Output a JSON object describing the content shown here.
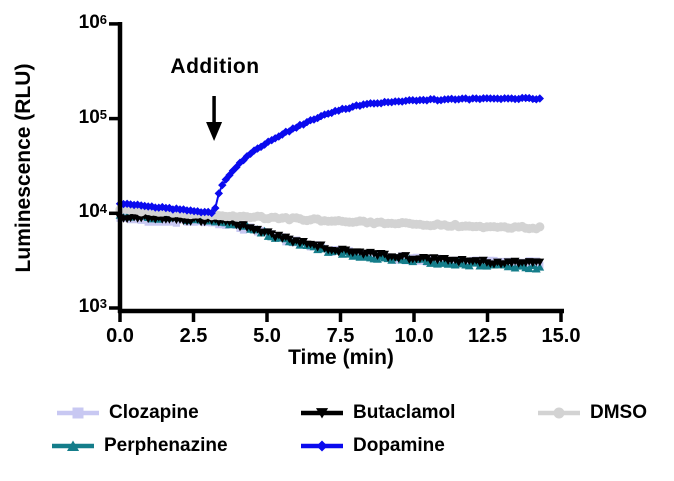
{
  "chart_data": {
    "type": "line",
    "title": "",
    "xlabel": "Time (min)",
    "ylabel": "Luminescence (RLU)",
    "y_scale": "log10",
    "xlim": [
      0.0,
      15.0
    ],
    "ylim": [
      1000,
      1000000
    ],
    "xticks": [
      0.0,
      2.5,
      5.0,
      7.5,
      10.0,
      12.5,
      15.0
    ],
    "xtick_labels": [
      "0.0",
      "2.5",
      "5.0",
      "7.5",
      "10.0",
      "12.5",
      "15.0"
    ],
    "ytick_exponents": [
      3,
      4,
      5,
      6
    ],
    "ytick_base": "10",
    "grid": false,
    "legend_position": "bottom",
    "annotation": {
      "label": "Addition",
      "arrow_time_min": 3.2
    },
    "series": [
      {
        "name": "Clozapine",
        "color": "#c8c8f2",
        "marker": "square",
        "marker_size": 3.6,
        "noise": 0.028,
        "keypoints": [
          [
            0,
            8900
          ],
          [
            0.5,
            8750
          ],
          [
            1,
            8600
          ],
          [
            1.5,
            8480
          ],
          [
            2,
            8350
          ],
          [
            2.5,
            8200
          ],
          [
            3,
            8050
          ],
          [
            3.5,
            7800
          ],
          [
            4,
            7300
          ],
          [
            4.5,
            6650
          ],
          [
            5,
            6000
          ],
          [
            5.5,
            5400
          ],
          [
            6,
            4900
          ],
          [
            6.5,
            4500
          ],
          [
            7,
            4200
          ],
          [
            7.5,
            3950
          ],
          [
            8,
            3750
          ],
          [
            8.5,
            3600
          ],
          [
            9,
            3480
          ],
          [
            9.5,
            3380
          ],
          [
            10,
            3280
          ],
          [
            11,
            3130
          ],
          [
            12,
            3040
          ],
          [
            13,
            3000
          ],
          [
            14.3,
            2980
          ]
        ]
      },
      {
        "name": "Perphenazine",
        "color": "#147d8a",
        "marker": "triangle-up",
        "marker_size": 4,
        "noise": 0.024,
        "keypoints": [
          [
            0,
            9500
          ],
          [
            0.5,
            9350
          ],
          [
            1,
            9200
          ],
          [
            1.5,
            9050
          ],
          [
            2,
            8900
          ],
          [
            2.5,
            8700
          ],
          [
            3,
            8500
          ],
          [
            3.5,
            8200
          ],
          [
            4,
            7600
          ],
          [
            4.5,
            6850
          ],
          [
            5,
            6100
          ],
          [
            5.5,
            5450
          ],
          [
            6,
            4900
          ],
          [
            6.5,
            4450
          ],
          [
            7,
            4100
          ],
          [
            7.5,
            3850
          ],
          [
            8,
            3650
          ],
          [
            8.5,
            3500
          ],
          [
            9,
            3380
          ],
          [
            9.5,
            3280
          ],
          [
            10,
            3180
          ],
          [
            11,
            3000
          ],
          [
            12,
            2870
          ],
          [
            13,
            2780
          ],
          [
            14.3,
            2700
          ]
        ]
      },
      {
        "name": "Butaclamol",
        "color": "#000000",
        "marker": "triangle-down",
        "marker_size": 4,
        "noise": 0.022,
        "keypoints": [
          [
            0,
            9200
          ],
          [
            0.5,
            9050
          ],
          [
            1,
            8900
          ],
          [
            1.5,
            8750
          ],
          [
            2,
            8600
          ],
          [
            2.5,
            8450
          ],
          [
            3,
            8300
          ],
          [
            3.5,
            8050
          ],
          [
            4,
            7500
          ],
          [
            4.5,
            6800
          ],
          [
            5,
            6100
          ],
          [
            5.5,
            5500
          ],
          [
            6,
            5000
          ],
          [
            6.5,
            4600
          ],
          [
            7,
            4300
          ],
          [
            7.5,
            4050
          ],
          [
            8,
            3850
          ],
          [
            8.5,
            3700
          ],
          [
            9,
            3550
          ],
          [
            9.5,
            3450
          ],
          [
            10,
            3350
          ],
          [
            11,
            3200
          ],
          [
            12,
            3080
          ],
          [
            13,
            3000
          ],
          [
            14.3,
            2950
          ]
        ]
      },
      {
        "name": "DMSO",
        "color": "#d3d3d3",
        "marker": "circle",
        "marker_size": 4.6,
        "noise": 0.012,
        "keypoints": [
          [
            0,
            11000
          ],
          [
            1,
            10500
          ],
          [
            2,
            10100
          ],
          [
            3,
            9700
          ],
          [
            4,
            9300
          ],
          [
            5,
            9000
          ],
          [
            6,
            8700
          ],
          [
            7,
            8400
          ],
          [
            8,
            8100
          ],
          [
            9,
            7900
          ],
          [
            10,
            7700
          ],
          [
            11,
            7500
          ],
          [
            12,
            7300
          ],
          [
            13,
            7150
          ],
          [
            14.3,
            7000
          ]
        ]
      },
      {
        "name": "Dopamine",
        "color": "#0a0aee",
        "marker": "diamond",
        "marker_size": 4.2,
        "noise": 0.008,
        "keypoints": [
          [
            0,
            12600
          ],
          [
            0.5,
            12200
          ],
          [
            1,
            11800
          ],
          [
            1.5,
            11400
          ],
          [
            2,
            11000
          ],
          [
            2.5,
            10600
          ],
          [
            3,
            10200
          ],
          [
            3.2,
            9900
          ],
          [
            3.3,
            14500
          ],
          [
            3.45,
            19000
          ],
          [
            3.7,
            25000
          ],
          [
            4,
            32000
          ],
          [
            4.5,
            44000
          ],
          [
            5,
            56000
          ],
          [
            5.5,
            68000
          ],
          [
            6,
            81000
          ],
          [
            6.5,
            95000
          ],
          [
            7,
            110000
          ],
          [
            7.5,
            124000
          ],
          [
            8,
            135000
          ],
          [
            8.5,
            143000
          ],
          [
            9,
            149000
          ],
          [
            9.5,
            153000
          ],
          [
            10,
            156000
          ],
          [
            11,
            159000
          ],
          [
            12,
            161000
          ],
          [
            13,
            162000
          ],
          [
            14.3,
            163000
          ]
        ]
      }
    ]
  },
  "legend": {
    "rows": [
      [
        "Clozapine",
        "Butaclamol",
        "DMSO"
      ],
      [
        "Perphenazine",
        "Dopamine"
      ]
    ]
  }
}
